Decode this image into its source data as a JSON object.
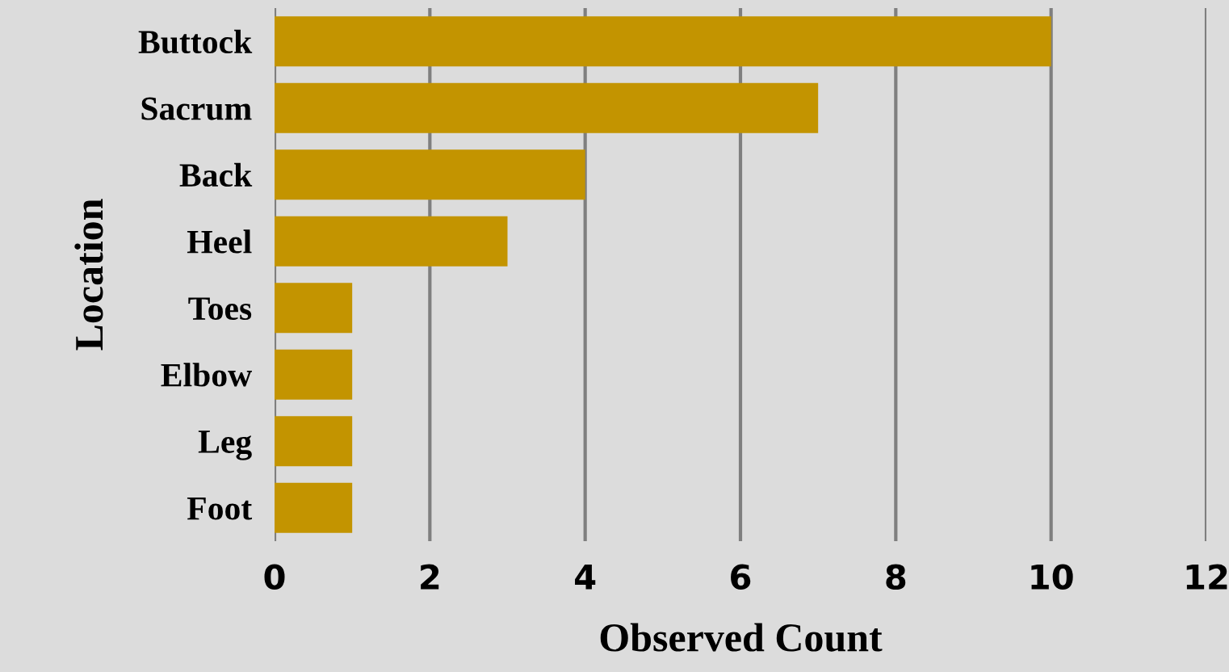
{
  "chart_data": {
    "type": "bar",
    "orientation": "horizontal",
    "xlabel": "Observed Count",
    "ylabel": "Location",
    "categories": [
      "Buttock",
      "Sacrum",
      "Back",
      "Heel",
      "Toes",
      "Elbow",
      "Leg",
      "Foot"
    ],
    "values": [
      10,
      7,
      4,
      3,
      1,
      1,
      1,
      1
    ],
    "color": "#c39400",
    "xlim": [
      0,
      12
    ],
    "xticks": [
      0,
      2,
      4,
      6,
      8,
      10,
      12
    ],
    "grid": "x",
    "legend": false
  }
}
